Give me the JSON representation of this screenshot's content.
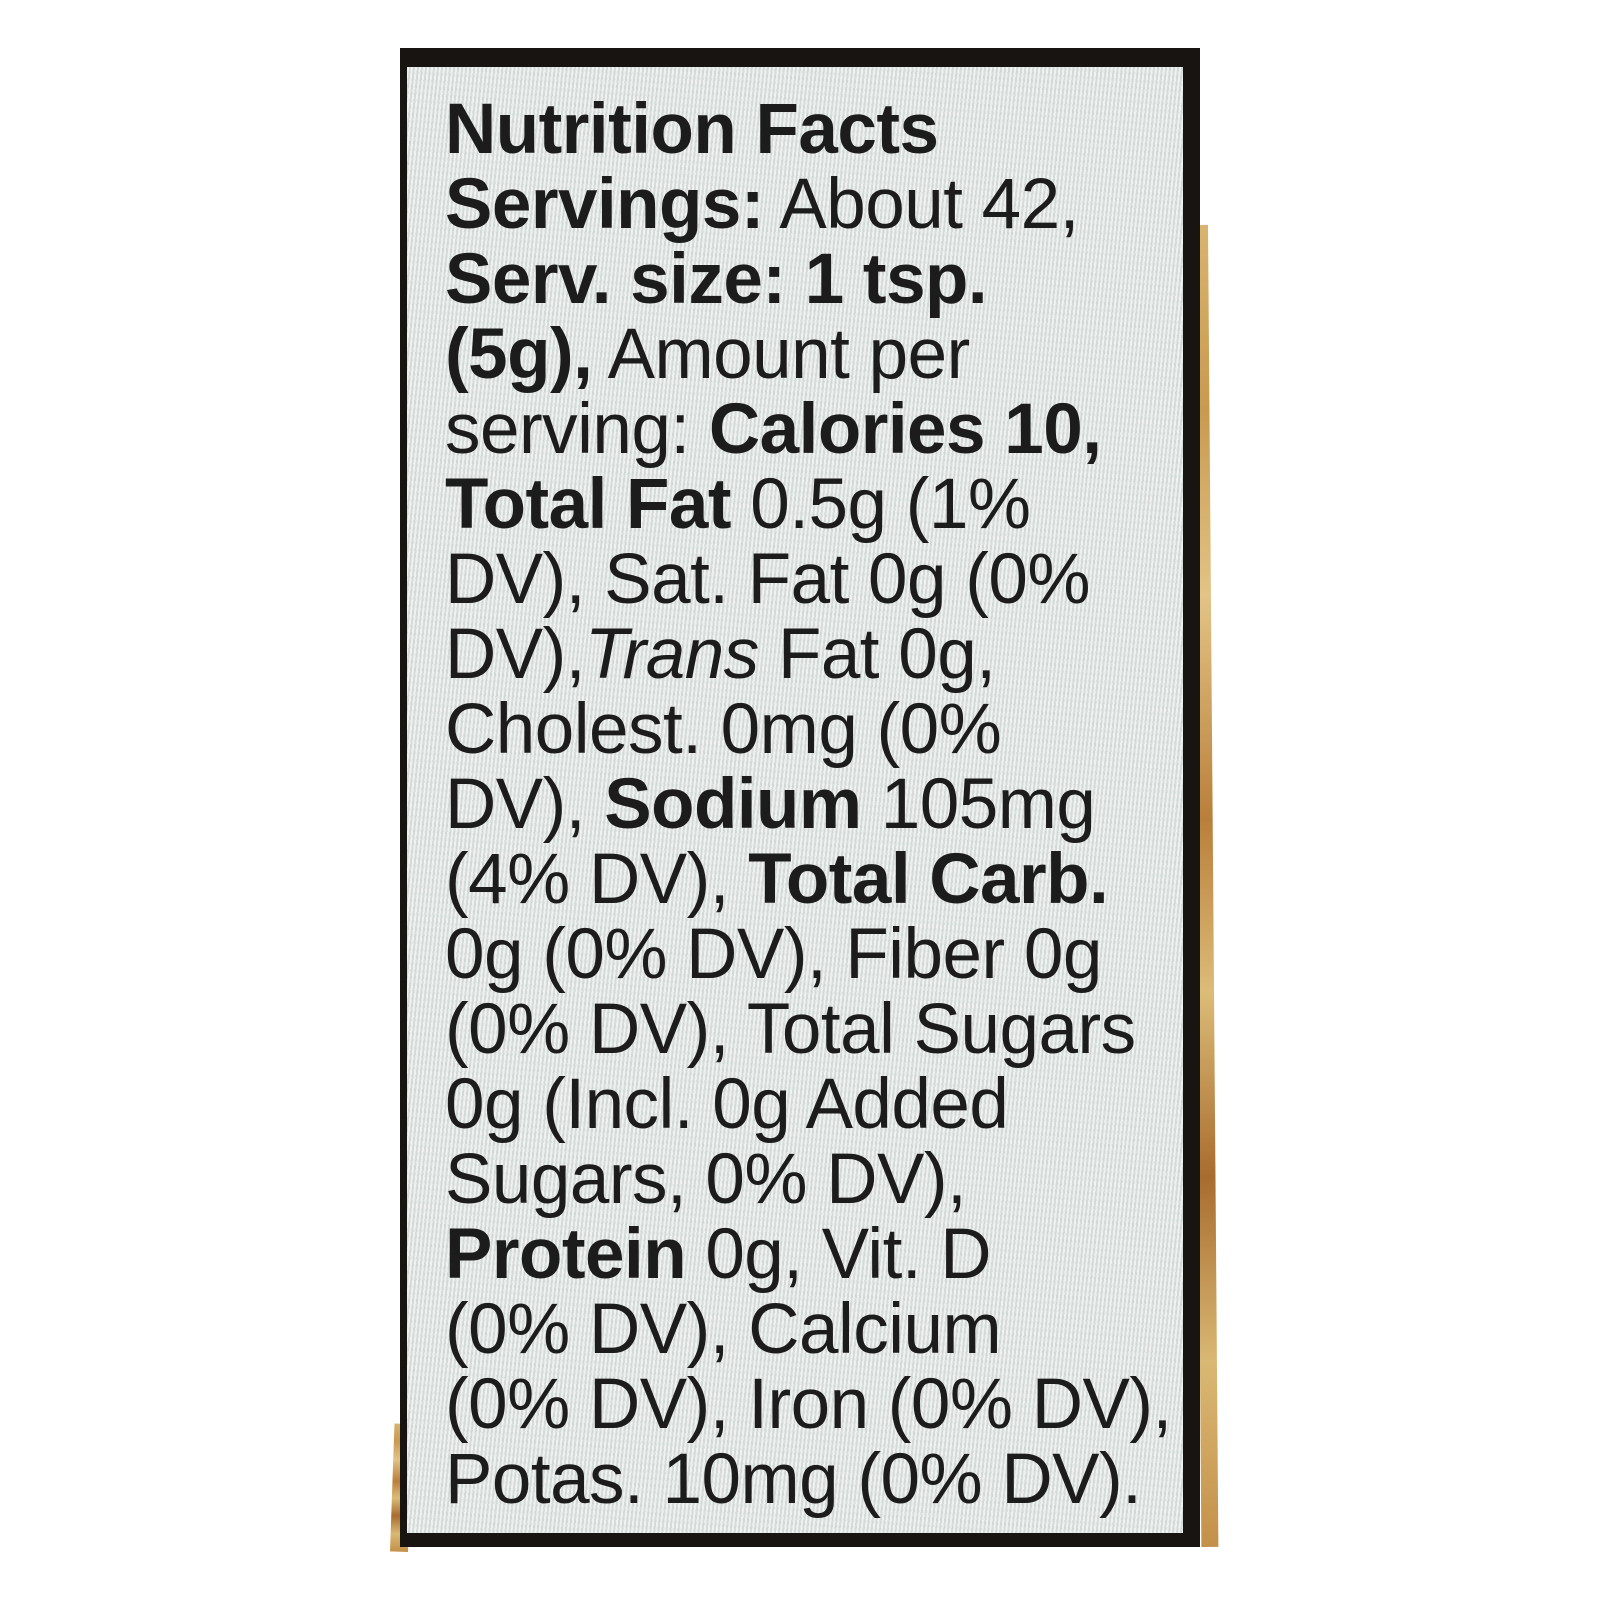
{
  "photo": {
    "background_color": "#ffffff"
  },
  "jar": {
    "content_color": "#c49a55"
  },
  "label": {
    "kind": "nutrition-facts-label",
    "background_color": "#e3e7e6",
    "border_color": "#171412",
    "text_color": "#1c1c1c",
    "lines": [
      {
        "segments": [
          {
            "text": "Nutrition Facts",
            "bold": true
          }
        ]
      },
      {
        "segments": [
          {
            "text": "Servings:",
            "bold": true
          },
          {
            "text": " About 42,"
          }
        ]
      },
      {
        "segments": [
          {
            "text": "Serv. size: 1 tsp.",
            "bold": true
          }
        ]
      },
      {
        "segments": [
          {
            "text": "(5g),",
            "bold": true
          },
          {
            "text": " Amount per"
          }
        ]
      },
      {
        "segments": [
          {
            "text": "serving: "
          },
          {
            "text": "Calories 10,",
            "bold": true
          }
        ]
      },
      {
        "segments": [
          {
            "text": "Total Fat",
            "bold": true
          },
          {
            "text": " 0.5g (1%"
          }
        ]
      },
      {
        "segments": [
          {
            "text": "DV), Sat. Fat 0g (0%"
          }
        ]
      },
      {
        "segments": [
          {
            "text": "DV),"
          },
          {
            "text": "Trans",
            "italic": true
          },
          {
            "text": " Fat 0g,"
          }
        ]
      },
      {
        "segments": [
          {
            "text": "Cholest. 0mg (0%"
          }
        ]
      },
      {
        "segments": [
          {
            "text": "DV), "
          },
          {
            "text": "Sodium",
            "bold": true
          },
          {
            "text": " 105mg"
          }
        ]
      },
      {
        "segments": [
          {
            "text": "(4% DV), "
          },
          {
            "text": "Total Carb.",
            "bold": true
          }
        ]
      },
      {
        "segments": [
          {
            "text": "0g (0% DV), Fiber 0g"
          }
        ]
      },
      {
        "segments": [
          {
            "text": "(0% DV), Total Sugars"
          }
        ]
      },
      {
        "segments": [
          {
            "text": "0g (Incl. 0g Added"
          }
        ]
      },
      {
        "segments": [
          {
            "text": "Sugars, 0% DV),"
          }
        ]
      },
      {
        "segments": [
          {
            "text": "Protein",
            "bold": true
          },
          {
            "text": " 0g, Vit. D"
          }
        ]
      },
      {
        "segments": [
          {
            "text": "(0% DV), Calcium"
          }
        ]
      },
      {
        "segments": [
          {
            "text": "(0% DV), Iron (0% DV),"
          }
        ]
      },
      {
        "segments": [
          {
            "text": "Potas. 10mg (0% DV)."
          }
        ]
      }
    ]
  }
}
